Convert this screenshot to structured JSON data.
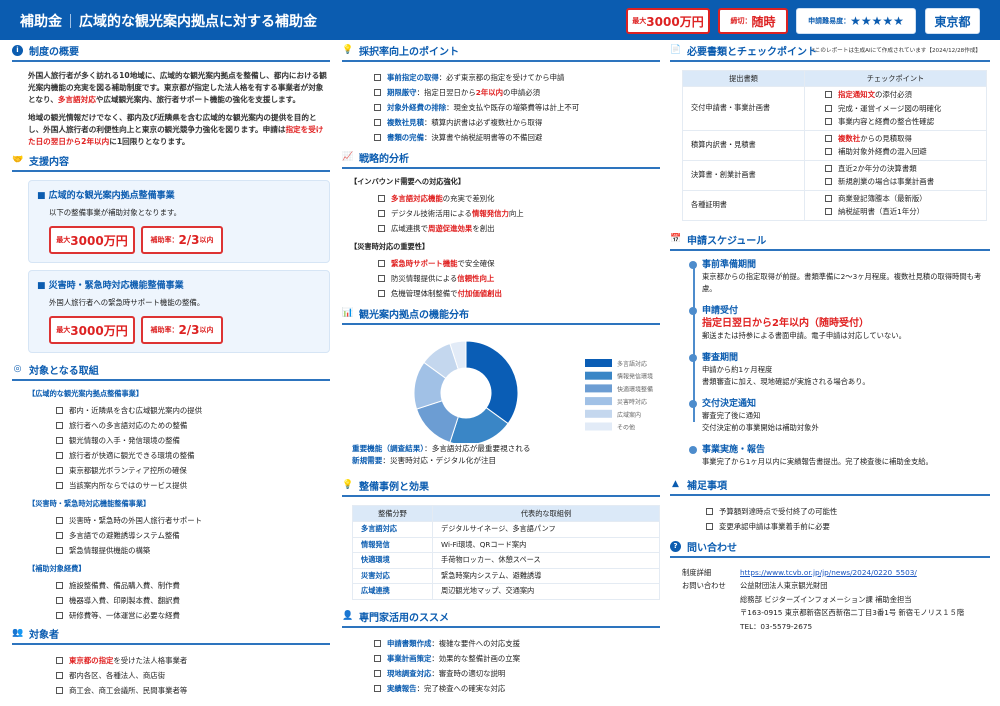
{
  "header": {
    "category": "補助金",
    "title": "広域的な観光案内拠点に対する補助金",
    "badges": {
      "max_prefix": "最大",
      "max_value": "3000万円",
      "deadline_prefix": "締切：",
      "deadline_value": "随時",
      "difficulty_label": "申請難易度：",
      "difficulty_stars": "★★★★★",
      "region": "東京都"
    }
  },
  "note": "*このレポートは生成AIにて作成されています【2024/12/28作成】",
  "overview": {
    "title": "制度の概要",
    "paragraphs": [
      [
        [
          "外国人旅行者が多く訪れる10地域に、広域的な観光案内拠点を整備し、都内における観光案内機能の充実を図る補助制度です。東京都が指定した法人格を有する事業者が対象となり、",
          ""
        ],
        [
          "多言語対応",
          "red"
        ],
        [
          "や広域観光案内、旅行者サポート機能の強化を支援します。",
          ""
        ]
      ],
      [
        [
          "地域の観光情報だけでなく、都内及び近隣県を含む広域的な観光案内の提供を目的とし、外国人旅行者の利便性向上と東京の観光競争力強化を図ります。申請は",
          ""
        ],
        [
          "指定を受けた日の翌日から2年以内",
          "red"
        ],
        [
          "に1回限りとなります。",
          ""
        ]
      ]
    ]
  },
  "support": {
    "title": "支援内容",
    "cards": [
      {
        "title": "■ 広域的な観光案内拠点整備事業",
        "text": "以下の整備事業が補助対象となります。",
        "max_prefix": "最大",
        "max_value": "3000万円",
        "rate_prefix": "補助率：",
        "rate_value": "2/3",
        "rate_suffix": "以内"
      },
      {
        "title": "■ 災害時・緊急時対応機能整備事業",
        "text": "外国人旅行者への緊急時サポート機能の整備。",
        "max_prefix": "最大",
        "max_value": "3000万円",
        "rate_prefix": "補助率：",
        "rate_value": "2/3",
        "rate_suffix": "以内"
      }
    ]
  },
  "targets": {
    "title": "対象となる取組",
    "groups": [
      {
        "label": "【広域的な観光案内拠点整備事業】",
        "items": [
          [
            [
              "都内・近隣県を含む広域観光案内の提供",
              ""
            ]
          ],
          [
            [
              "旅行者への多言語対応のための整備",
              ""
            ]
          ],
          [
            [
              "観光情報の入手・発信環境の整備",
              ""
            ]
          ],
          [
            [
              "旅行者が快適に観光できる環境の整備",
              ""
            ]
          ],
          [
            [
              "東京都観光ボランティア控所の確保",
              ""
            ]
          ],
          [
            [
              "当該案内所ならではのサービス提供",
              ""
            ]
          ]
        ]
      },
      {
        "label": "【災害時・緊急時対応機能整備事業】",
        "items": [
          [
            [
              "災害時・緊急時の外国人旅行者サポート",
              ""
            ]
          ],
          [
            [
              "多言語での避難誘導システム整備",
              ""
            ]
          ],
          [
            [
              "緊急情報提供機能の構築",
              ""
            ]
          ]
        ]
      },
      {
        "label": "【補助対象経費】",
        "items": [
          [
            [
              "施設整備費、備品購入費、制作費",
              ""
            ]
          ],
          [
            [
              "機器導入費、印刷製本費、翻訳費",
              ""
            ]
          ],
          [
            [
              "研修費等、一体運営に必要な経費",
              ""
            ]
          ]
        ]
      }
    ]
  },
  "eligible": {
    "title": "対象者",
    "items": [
      [
        [
          "東京都の指定",
          "red"
        ],
        [
          "を受けた法人格事業者",
          ""
        ]
      ],
      [
        [
          "都内各区、各種法人、商店街",
          ""
        ]
      ],
      [
        [
          "商工会、商工会議所、民間事業者等",
          ""
        ]
      ]
    ]
  },
  "points": {
    "title": "採択率向上のポイント",
    "items": [
      [
        [
          "事前指定の取得",
          "blue"
        ],
        [
          "：必ず東京都の指定を受けてから申請",
          ""
        ]
      ],
      [
        [
          "期限厳守",
          "blue"
        ],
        [
          "：指定日翌日から",
          ""
        ],
        [
          "2年以内",
          "red"
        ],
        [
          "の申請必須",
          ""
        ]
      ],
      [
        [
          "対象外経費の排除",
          "blue"
        ],
        [
          "：現金支払や既存の増築費等は計上不可",
          ""
        ]
      ],
      [
        [
          "複数社見積",
          "blue"
        ],
        [
          "：積算内訳書は必ず複数社から取得",
          ""
        ]
      ],
      [
        [
          "書類の完備",
          "blue"
        ],
        [
          "：決算書や納税証明書等の不備回避",
          ""
        ]
      ]
    ]
  },
  "strategy": {
    "title": "戦略的分析",
    "groups": [
      {
        "label": "【インバウンド需要への対応強化】",
        "items": [
          [
            [
              "多言語対応機能",
              "red"
            ],
            [
              "の充実で差別化",
              ""
            ]
          ],
          [
            [
              "デジタル技術活用による",
              ""
            ],
            [
              "情報発信力",
              "red"
            ],
            [
              "向上",
              ""
            ]
          ],
          [
            [
              "広域連携で",
              ""
            ],
            [
              "周遊促進効果",
              "red"
            ],
            [
              "を創出",
              ""
            ]
          ]
        ]
      },
      {
        "label": "【災害時対応の重要性】",
        "items": [
          [
            [
              "緊急時サポート機能",
              "red"
            ],
            [
              "で安全確保",
              ""
            ]
          ],
          [
            [
              "防災情報提供による",
              ""
            ],
            [
              "信頼性向上",
              "red"
            ]
          ],
          [
            [
              "危機管理体制整備で",
              ""
            ],
            [
              "付加価値創出",
              "red"
            ]
          ]
        ]
      }
    ]
  },
  "distribution": {
    "title": "観光案内拠点の機能分布",
    "notes": [
      [
        [
          "重要機能（調査結果）",
          "blue"
        ],
        [
          "：多言語対応が最重要視される",
          ""
        ]
      ],
      [
        [
          "新規需要",
          "blue"
        ],
        [
          "：災害時対応・デジタル化が注目",
          ""
        ]
      ]
    ]
  },
  "chart_data": {
    "type": "pie",
    "donut": true,
    "legend_position": "right",
    "categories": [
      "多言語対応",
      "情報発信環境",
      "快適環境整備",
      "災害時対応",
      "広域案内",
      "その他"
    ],
    "values": [
      35,
      20,
      15,
      15,
      10,
      5
    ],
    "colors": [
      "#0a5db5",
      "#3a86c6",
      "#6c9dd3",
      "#a1c1e6",
      "#c4d7ee",
      "#e2ebf7"
    ]
  },
  "cases": {
    "title": "整備事例と効果",
    "headers": [
      "整備分野",
      "代表的な取組例"
    ],
    "rows": [
      [
        "多言語対応",
        "デジタルサイネージ、多言語パンフ"
      ],
      [
        "情報発信",
        "Wi-Fi環境、QRコード案内"
      ],
      [
        "快適環境",
        "手荷物ロッカー、休憩スペース"
      ],
      [
        "災害対応",
        "緊急時案内システム、避難誘導"
      ],
      [
        "広域連携",
        "周辺観光地マップ、交通案内"
      ]
    ]
  },
  "experts": {
    "title": "専門家活用のススメ",
    "items": [
      [
        [
          "申請書類作成",
          "blue"
        ],
        [
          "：複雑な要件への対応支援",
          ""
        ]
      ],
      [
        [
          "事業計画策定",
          "blue"
        ],
        [
          "：効果的な整備計画の立案",
          ""
        ]
      ],
      [
        [
          "現地調査対応",
          "blue"
        ],
        [
          "：審査時の適切な説明",
          ""
        ]
      ],
      [
        [
          "実績報告",
          "blue"
        ],
        [
          "：完了検査への確実な対応",
          ""
        ]
      ]
    ]
  },
  "documents": {
    "title": "必要書類とチェックポイント",
    "headers": [
      "提出書類",
      "チェックポイント"
    ],
    "rows": [
      {
        "doc": "交付申請書・事業計画書",
        "checks": [
          [
            [
              "指定通知文",
              "red"
            ],
            [
              "の添付必須",
              ""
            ]
          ],
          [
            [
              "完成・運営イメージ図の明確化",
              ""
            ]
          ],
          [
            [
              "事業内容と経費の整合性確認",
              ""
            ]
          ]
        ]
      },
      {
        "doc": "積算内訳書・見積書",
        "checks": [
          [
            [
              "複数社",
              "red"
            ],
            [
              "からの見積取得",
              ""
            ]
          ],
          [
            [
              "補助対象外経費の混入回避",
              ""
            ]
          ]
        ]
      },
      {
        "doc": "決算書・創業計画書",
        "checks": [
          [
            [
              "直近2か年分の決算書類",
              ""
            ]
          ],
          [
            [
              "新規創業の場合は事業計画書",
              ""
            ]
          ]
        ]
      },
      {
        "doc": "各種証明書",
        "checks": [
          [
            [
              "商業登記簿謄本（最新版）",
              ""
            ]
          ],
          [
            [
              "納税証明書（直近1年分）",
              ""
            ]
          ]
        ]
      }
    ]
  },
  "schedule": {
    "title": "申請スケジュール",
    "items": [
      {
        "title": "事前準備期間",
        "highlight": "",
        "lines": [
          "東京都からの指定取得が前提。書類準備に2〜3ヶ月程度。複数社見積の取得時間も考慮。"
        ]
      },
      {
        "title": "申請受付",
        "highlight": "指定日翌日から2年以内（随時受付）",
        "lines": [
          "郵送または持参による書面申請。電子申請は対応していない。"
        ]
      },
      {
        "title": "審査期間",
        "highlight": "",
        "lines": [
          "申請から約1ヶ月程度",
          "書類審査に加え、現地確認が実施される場合あり。"
        ]
      },
      {
        "title": "交付決定通知",
        "highlight": "",
        "lines": [
          "審査完了後に通知",
          "交付決定前の事業開始は補助対象外"
        ]
      },
      {
        "title": "事業実施・報告",
        "highlight": "",
        "lines": [
          "事業完了から1ヶ月以内に実績報告書提出。完了検査後に補助金支給。"
        ]
      }
    ]
  },
  "supplement": {
    "title": "補足事項",
    "items": [
      [
        [
          "予算額到達時点で受付終了の可能性",
          ""
        ]
      ],
      [
        [
          "変更承認申請は事業着手前に必要",
          ""
        ]
      ]
    ]
  },
  "contact": {
    "title": "問い合わせ",
    "detail_label": "制度詳細",
    "url": "https://www.tcvb.or.jp/jp/news/2024/0220_5503/",
    "inquiry_label": "お問い合わせ",
    "lines": [
      "公益財団法人東京観光財団",
      "総務部 ビジターズインフォメーション課 補助金担当",
      "〒163-0915 東京都新宿区西新宿二丁目3番1号 新宿モノリス１５階",
      "TEL：03-5579-2675"
    ]
  }
}
